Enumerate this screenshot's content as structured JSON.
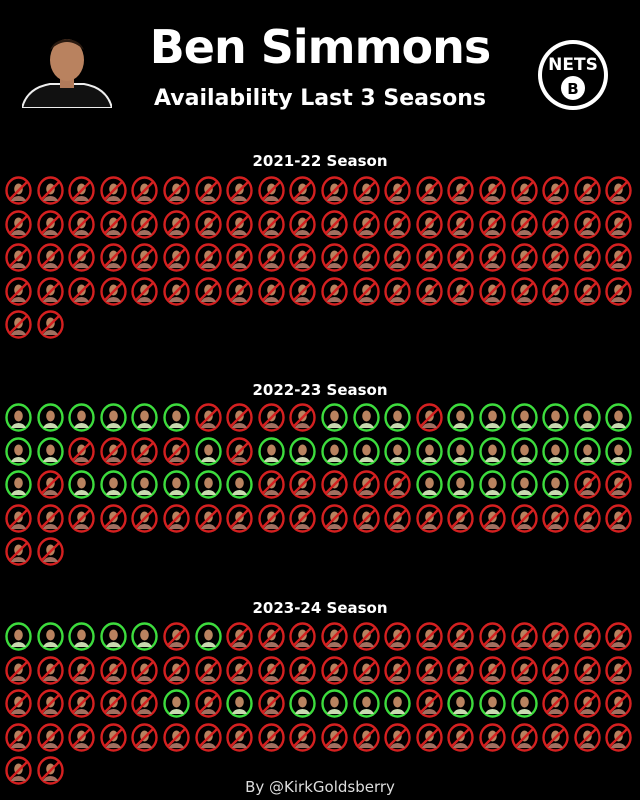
{
  "header": {
    "title": "Ben Simmons",
    "subtitle": "Availability Last 3 Seasons",
    "logo_text": "NETS",
    "team": "Brooklyn Nets"
  },
  "footer": "By @KirkGoldsberry",
  "colors": {
    "played": "#3ddc3d",
    "missed": "#d42020",
    "background": "#000000"
  },
  "icons": {
    "played": "player-face-green-ring",
    "missed": "player-face-red-prohibited"
  },
  "chart_data": {
    "type": "heatmap",
    "description_legend": {
      "G": "played",
      "R": "missed"
    },
    "columns": 20,
    "seasons": [
      {
        "label": "2021-22 Season",
        "games_played": 0,
        "games": "RRRRRRRRRRRRRRRRRRRRRRRRRRRRRRRRRRRRRRRRRRRRRRRRRRRRRRRRRRRRRRRRRRRRRRRRRRRRRRRRRR"
      },
      {
        "label": "2022-23 Season",
        "games_played": 42,
        "games": "GGGGGGRRRRGGGRGGGGGGGGRRRRGRGGGGGGGGGGGGGRGGGGGGRRRRRGGGGGRRRRRRRRRRRRRRRRRRRRRRRR"
      },
      {
        "label": "2023-24 Season",
        "games_played": 15,
        "games": "GGGGGRGRRRRRRRRRRRRRRRRRRRRRRRRRRRRRRRRRRRRRRGRGRGGGGRGGGRRRRRRRRRRRRRRRRRRRRRRRRR"
      }
    ]
  }
}
